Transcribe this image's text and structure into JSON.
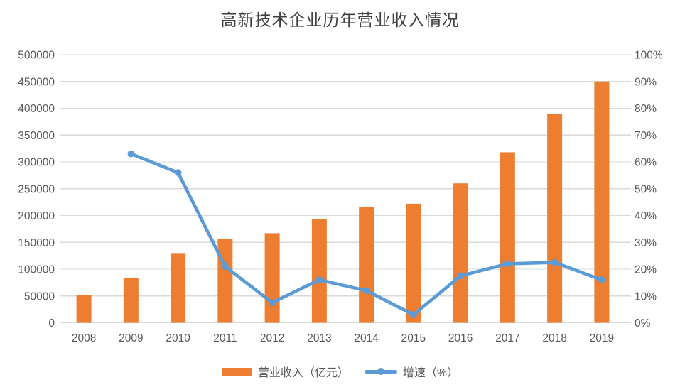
{
  "chart_data": {
    "type": "combo-bar-line",
    "title": "高新技术企业历年营业收入情况",
    "categories": [
      "2008",
      "2009",
      "2010",
      "2011",
      "2012",
      "2013",
      "2014",
      "2015",
      "2016",
      "2017",
      "2018",
      "2019"
    ],
    "series": [
      {
        "name": "营业收入（亿元）",
        "type": "bar",
        "axis": "left",
        "color": "#ED7D31",
        "values": [
          51000,
          83000,
          130000,
          156000,
          167000,
          193000,
          216000,
          222000,
          260000,
          318000,
          389000,
          450000
        ]
      },
      {
        "name": "增速（%）",
        "type": "line",
        "axis": "right",
        "color": "#5B9BD5",
        "values": [
          null,
          63,
          56,
          21,
          7.5,
          16,
          12,
          3,
          17.5,
          22,
          22.5,
          16
        ]
      }
    ],
    "left_axis": {
      "min": 0,
      "max": 500000,
      "step": 50000,
      "tick_labels": [
        "0",
        "50000",
        "100000",
        "150000",
        "200000",
        "250000",
        "300000",
        "350000",
        "400000",
        "450000",
        "500000"
      ]
    },
    "right_axis": {
      "min": 0,
      "max": 100,
      "step": 10,
      "tick_labels": [
        "0%",
        "10%",
        "20%",
        "30%",
        "40%",
        "50%",
        "60%",
        "70%",
        "80%",
        "90%",
        "100%"
      ]
    },
    "grid": true,
    "legend_position": "bottom",
    "colors": {
      "grid": "#D9D9D9",
      "axis_text": "#595959",
      "title_text": "#404040",
      "background": "#FFFFFF"
    }
  }
}
